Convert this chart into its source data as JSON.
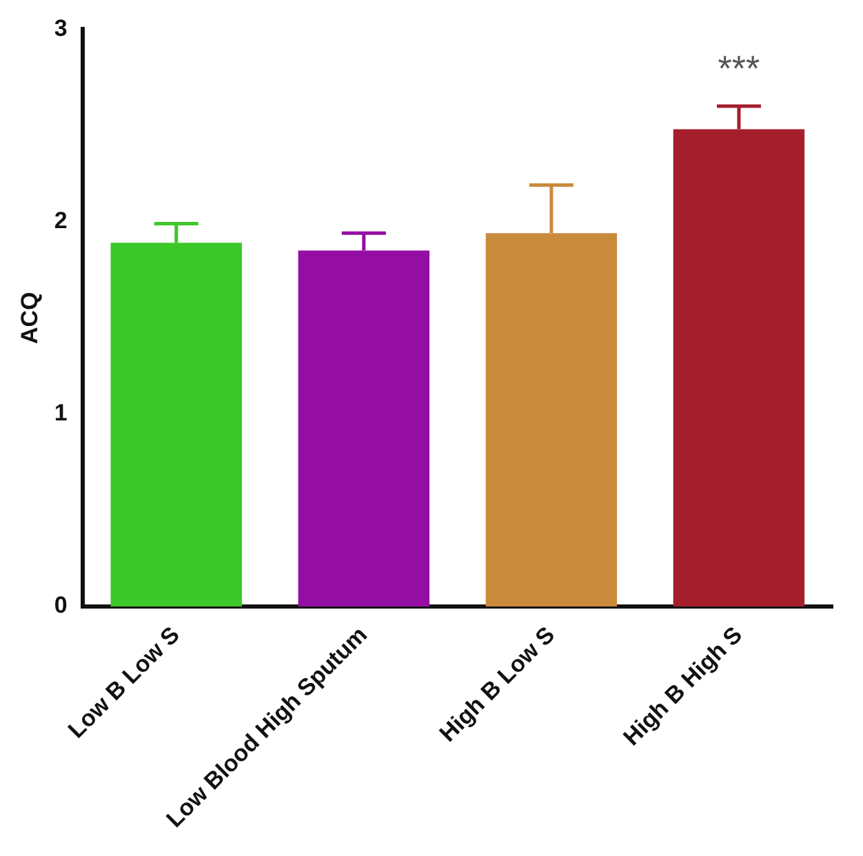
{
  "chart_data": {
    "type": "bar",
    "ylabel": "ACQ",
    "categories": [
      "Low B Low S",
      "Low Blood High Sputum",
      "High B Low S",
      "High B High S"
    ],
    "values": [
      1.89,
      1.85,
      1.94,
      2.48
    ],
    "colors": [
      "#3cc828",
      "#950ea3",
      "#c98a3c",
      "#a51e2c"
    ],
    "errors": [
      [
        1.89,
        1.99
      ],
      [
        1.85,
        1.94
      ],
      [
        1.94,
        2.19
      ],
      [
        2.48,
        2.6
      ]
    ],
    "ylim": [
      0,
      3
    ],
    "yticks": [
      0,
      1,
      2,
      3
    ],
    "grid": false,
    "legend": false,
    "annotations": [
      "***"
    ]
  }
}
